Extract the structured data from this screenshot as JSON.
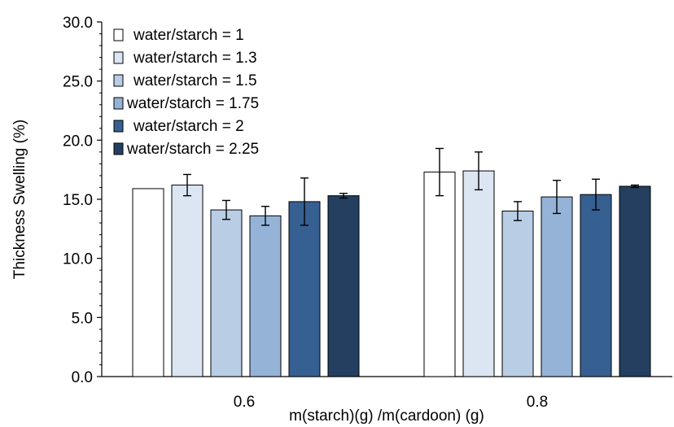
{
  "chart_data": {
    "type": "bar",
    "title": "",
    "xlabel": "m(starch)(g) /m(cardoon) (g)",
    "ylabel": "Thickness Swelling (%)",
    "ylim": [
      0,
      30
    ],
    "yticks": [
      "0.0",
      "5.0",
      "10.0",
      "15.0",
      "20.0",
      "25.0",
      "30.0"
    ],
    "categories": [
      "0.6",
      "0.8"
    ],
    "legend_position": "top-left",
    "grid": false,
    "series": [
      {
        "name": "water/starch = 1",
        "color": "#ffffff",
        "values": [
          15.9,
          17.3
        ],
        "errors": [
          0.0,
          2.0
        ]
      },
      {
        "name": "water/starch = 1.3",
        "color": "#dce6f2",
        "values": [
          16.2,
          17.4
        ],
        "errors": [
          0.9,
          1.6
        ]
      },
      {
        "name": "water/starch = 1.5",
        "color": "#b9cde5",
        "values": [
          14.1,
          14.0
        ],
        "errors": [
          0.8,
          0.8
        ]
      },
      {
        "name": "water/starch = 1.75",
        "color": "#95b3d7",
        "values": [
          13.6,
          15.2
        ],
        "errors": [
          0.8,
          1.4
        ]
      },
      {
        "name": "water/starch = 2",
        "color": "#376092",
        "values": [
          14.8,
          15.4
        ],
        "errors": [
          2.0,
          1.3
        ]
      },
      {
        "name": "water/starch = 2.25",
        "color": "#243f60",
        "values": [
          15.3,
          16.1
        ],
        "errors": [
          0.2,
          0.1
        ]
      }
    ]
  }
}
